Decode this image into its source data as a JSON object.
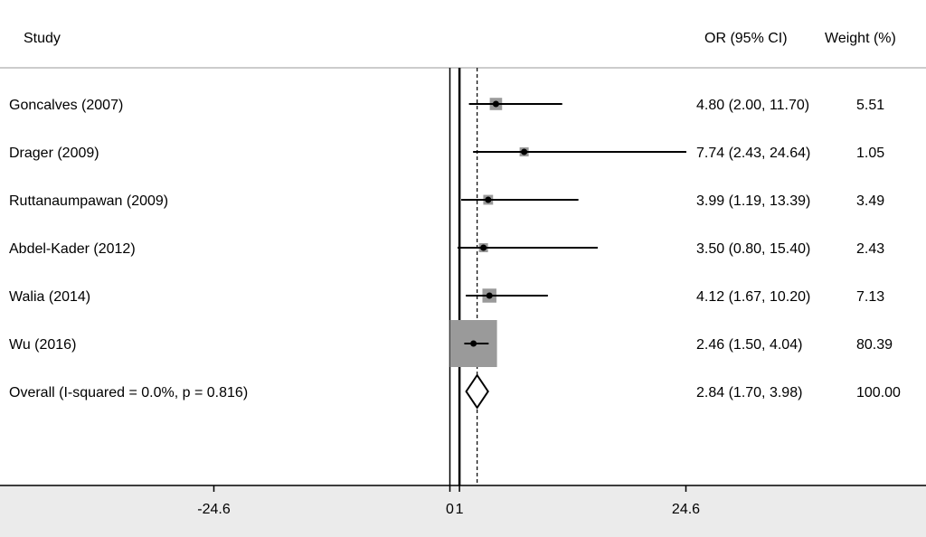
{
  "headers": {
    "study": "Study",
    "or_ci": "OR (95% CI)",
    "weight": "Weight (%)"
  },
  "colors": {
    "axis_band": "#ebebeb",
    "weight_box": "#9a9a9a",
    "ink": "#000000"
  },
  "chart_data": {
    "type": "forest",
    "x_ticks": [
      {
        "value": -24.6,
        "label": "-24.6"
      },
      {
        "value": 0,
        "label": "0"
      },
      {
        "value": 1,
        "label": "1"
      },
      {
        "value": 24.6,
        "label": "24.6"
      }
    ],
    "xlim": [
      -49.2,
      49.2
    ],
    "null_line": 1,
    "overall_line": 2.84,
    "studies": [
      {
        "label": "Goncalves (2007)",
        "or": 4.8,
        "ci": [
          2.0,
          11.7
        ],
        "or_text": "4.80 (2.00, 11.70)",
        "weight": 5.51,
        "weight_text": "5.51"
      },
      {
        "label": "Drager (2009)",
        "or": 7.74,
        "ci": [
          2.43,
          24.64
        ],
        "or_text": "7.74 (2.43, 24.64)",
        "weight": 1.05,
        "weight_text": "1.05"
      },
      {
        "label": "Ruttanaumpawan (2009)",
        "or": 3.99,
        "ci": [
          1.19,
          13.39
        ],
        "or_text": "3.99 (1.19, 13.39)",
        "weight": 3.49,
        "weight_text": "3.49"
      },
      {
        "label": "Abdel-Kader (2012)",
        "or": 3.5,
        "ci": [
          0.8,
          15.4
        ],
        "or_text": "3.50 (0.80, 15.40)",
        "weight": 2.43,
        "weight_text": "2.43"
      },
      {
        "label": "Walia (2014)",
        "or": 4.12,
        "ci": [
          1.67,
          10.2
        ],
        "or_text": "4.12 (1.67, 10.20)",
        "weight": 7.13,
        "weight_text": "7.13"
      },
      {
        "label": "Wu (2016)",
        "or": 2.46,
        "ci": [
          1.5,
          4.04
        ],
        "or_text": "2.46 (1.50, 4.04)",
        "weight": 80.39,
        "weight_text": "80.39"
      }
    ],
    "overall": {
      "label": "Overall  (I-squared = 0.0%, p = 0.816)",
      "or": 2.84,
      "ci": [
        1.7,
        3.98
      ],
      "or_text": "2.84 (1.70, 3.98)",
      "weight_text": "100.00"
    }
  }
}
